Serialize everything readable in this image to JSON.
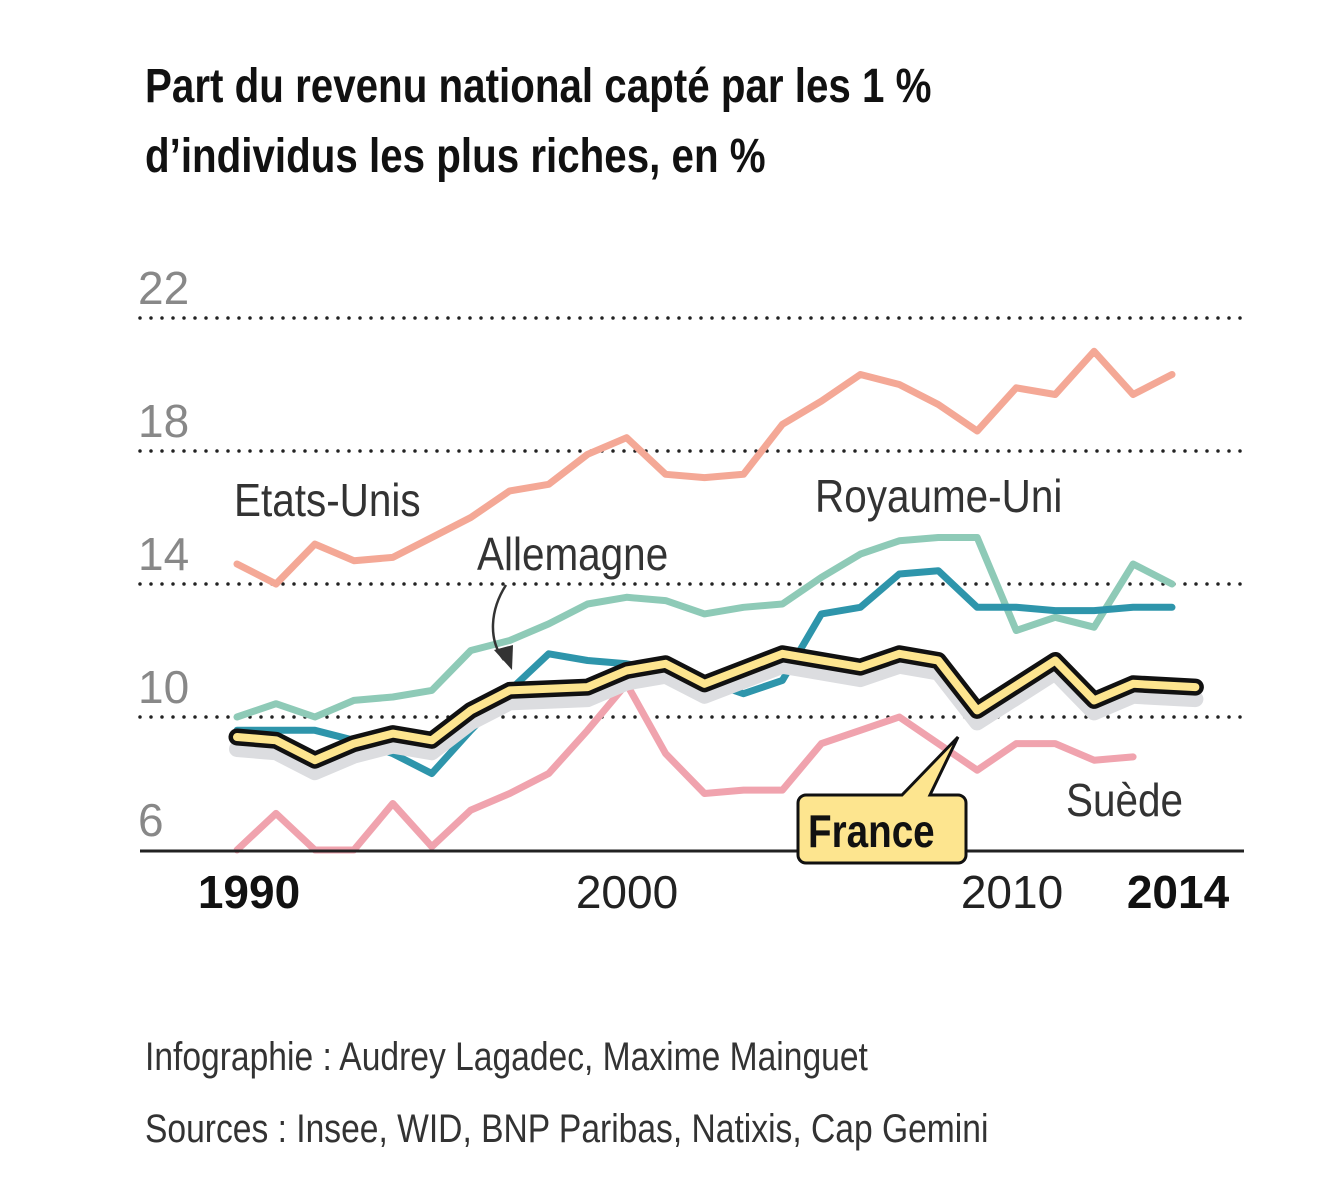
{
  "title_line1": "Part du revenu national capté par les 1 %",
  "title_line2": "d’individus les plus riches, en %",
  "credits": {
    "infographie": "Infographie : Audrey Lagadec, Maxime Mainguet",
    "sources": "Sources : Insee, WID, BNP Paribas, Natixis, Cap Gemini"
  },
  "chart_data": {
    "type": "line",
    "title": "Part du revenu national capté par les 1 % d’individus les plus riches, en %",
    "ylim": [
      6,
      22
    ],
    "yticks": [
      "22",
      "18",
      "14",
      "10",
      "6"
    ],
    "xlim": [
      1990,
      2014
    ],
    "xticks": [
      "1990",
      "2000",
      "2010",
      "2014"
    ],
    "grid": "dotted horizontal",
    "series": [
      {
        "name": "Etats-Unis",
        "color": "#f4a896",
        "x": [
          1990,
          1991,
          1992,
          1993,
          1994,
          1995,
          1996,
          1997,
          1998,
          1999,
          2000,
          2001,
          2002,
          2003,
          2004,
          2005,
          2006,
          2007,
          2008,
          2009,
          2010,
          2011,
          2012,
          2013,
          2014
        ],
        "y": [
          14.6,
          14.0,
          15.2,
          14.7,
          14.8,
          15.4,
          16.0,
          16.8,
          17.0,
          17.9,
          18.4,
          17.3,
          17.2,
          17.3,
          18.8,
          19.5,
          20.3,
          20.0,
          19.4,
          18.6,
          19.9,
          19.7,
          21.0,
          19.7,
          20.3
        ]
      },
      {
        "name": "Royaume-Uni",
        "color": "#8ecab7",
        "x": [
          1990,
          1991,
          1992,
          1993,
          1994,
          1995,
          1996,
          1997,
          1998,
          1999,
          2000,
          2001,
          2002,
          2003,
          2004,
          2005,
          2006,
          2007,
          2008,
          2009,
          2010,
          2011,
          2012,
          2013,
          2014
        ],
        "y": [
          10.0,
          10.4,
          10.0,
          10.5,
          10.6,
          10.8,
          12.0,
          12.3,
          12.8,
          13.4,
          13.6,
          13.5,
          13.1,
          13.3,
          13.4,
          14.2,
          14.9,
          15.3,
          15.4,
          15.4,
          12.6,
          13.0,
          12.7,
          14.6,
          14.0
        ]
      },
      {
        "name": "Allemagne",
        "color": "#2e95ab",
        "x": [
          1990,
          1991,
          1992,
          1993,
          1994,
          1995,
          1996,
          1997,
          1998,
          1999,
          2000,
          2001,
          2002,
          2003,
          2004,
          2005,
          2006,
          2007,
          2008,
          2009,
          2010,
          2011,
          2012,
          2013,
          2014
        ],
        "y": [
          9.6,
          9.6,
          9.6,
          9.3,
          8.9,
          8.3,
          9.6,
          10.8,
          11.9,
          11.7,
          11.6,
          11.4,
          11.1,
          10.7,
          11.1,
          13.1,
          13.3,
          14.3,
          14.4,
          13.3,
          13.3,
          13.2,
          13.2,
          13.3,
          13.3
        ]
      },
      {
        "name": "Suède",
        "color": "#f0a3ae",
        "x": [
          1990,
          1991,
          1992,
          1993,
          1994,
          1995,
          1996,
          1997,
          1998,
          1999,
          2000,
          2001,
          2002,
          2003,
          2004,
          2005,
          2006,
          2007,
          2008,
          2009,
          2010,
          2011,
          2012,
          2013
        ],
        "y": [
          6.0,
          7.1,
          6.0,
          6.0,
          7.4,
          6.1,
          7.2,
          7.7,
          8.3,
          9.6,
          11.0,
          8.9,
          7.7,
          7.8,
          7.8,
          9.2,
          9.6,
          10.0,
          9.2,
          8.4,
          9.2,
          9.2,
          8.7,
          8.8
        ]
      },
      {
        "name": "France",
        "color": "#fde58f",
        "x": [
          1990,
          1991,
          1992,
          1993,
          1994,
          1995,
          1996,
          1997,
          1999,
          2000,
          2001,
          2002,
          2004,
          2006,
          2007,
          2008,
          2009,
          2011,
          2012,
          2013,
          2014.6
        ],
        "y": [
          9.4,
          9.3,
          8.7,
          9.2,
          9.5,
          9.3,
          10.2,
          10.8,
          10.9,
          11.4,
          11.6,
          11.0,
          11.9,
          11.5,
          11.9,
          11.7,
          10.2,
          11.7,
          10.5,
          11.0,
          10.9
        ]
      }
    ]
  }
}
